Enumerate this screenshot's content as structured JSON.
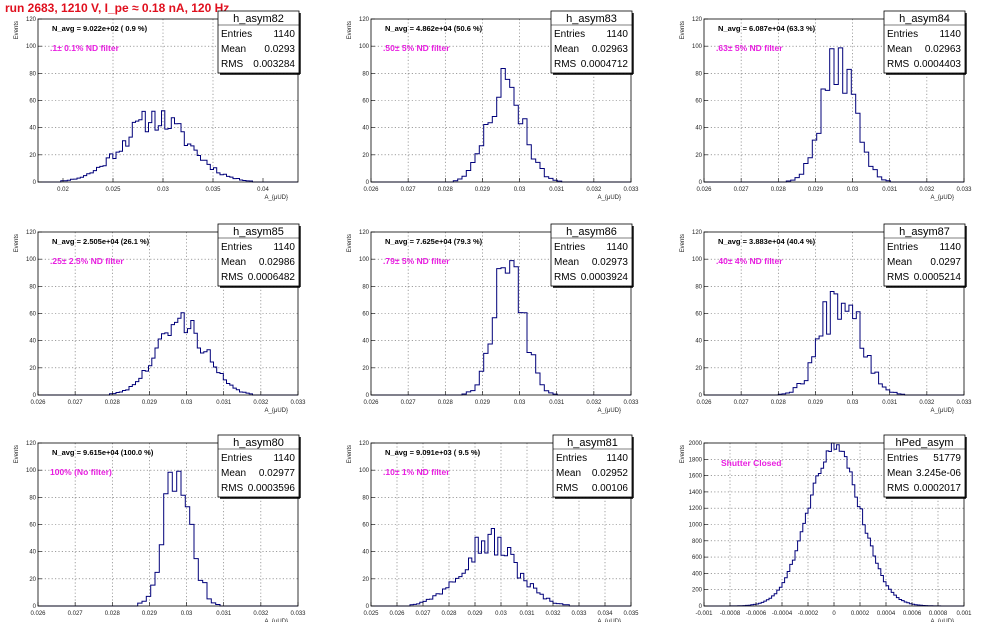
{
  "page_title": "run 2683,  1210 V, I_pe ≈ 0.18 nA, 120 Hz",
  "colors": {
    "title": "#e0101e",
    "annotation": "#e81ee0",
    "histogram": "#00007a",
    "grid": "#666666"
  },
  "chart_data": [
    {
      "type": "histogram",
      "name": "h_asym82",
      "entries": "1140",
      "mean": "0.0293",
      "rms": "0.003284",
      "n_avg": "N_avg = 9.022e+02 ( 0.9 %)",
      "filter": ".1± 0.1% ND filter",
      "ylabel": "Events",
      "xlabel": "A_{μUD}",
      "xlim": [
        0.0175,
        0.0435
      ],
      "ylim": [
        0,
        120
      ],
      "xticks": [
        0.02,
        0.025,
        0.03,
        0.035,
        0.04
      ],
      "xtick_labels": [
        "0.02",
        "0.025",
        "0.03",
        "0.035",
        "0.04"
      ],
      "yticks": [
        0,
        20,
        40,
        60,
        80,
        100,
        120
      ],
      "peak": 47,
      "dist": {
        "mean": 0.0293,
        "sigma": 0.0033,
        "w": 0.00022,
        "bins": 80,
        "seed": 11,
        "jit": 0.2
      }
    },
    {
      "type": "histogram",
      "name": "h_asym83",
      "entries": "1140",
      "mean": "0.02963",
      "rms": "0.0004712",
      "n_avg": "N_avg = 4.862e+04 (50.6 %)",
      "filter": ".50± 5% ND filter",
      "ylabel": "Events",
      "xlabel": "A_{μUD}",
      "xlim": [
        0.026,
        0.033
      ],
      "ylim": [
        0,
        120
      ],
      "xticks": [
        0.026,
        0.027,
        0.028,
        0.029,
        0.03,
        0.031,
        0.032,
        0.033
      ],
      "xtick_labels": [
        "0.026",
        "0.027",
        "0.028",
        "0.029",
        "0.03",
        "0.031",
        "0.032",
        "0.033"
      ],
      "yticks": [
        0,
        20,
        40,
        60,
        80,
        100,
        120
      ],
      "peak": 73,
      "dist": {
        "mean": 0.02963,
        "sigma": 0.00047,
        "w": 5e-05,
        "bins": 60,
        "seed": 23,
        "jit": 0.22
      }
    },
    {
      "type": "histogram",
      "name": "h_asym84",
      "entries": "1140",
      "mean": "0.02963",
      "rms": "0.0004403",
      "n_avg": "N_avg = 6.087e+04 (63.3 %)",
      "filter": ".63± 5% ND filter",
      "ylabel": "Events",
      "xlabel": "A_{μUD}",
      "xlim": [
        0.026,
        0.033
      ],
      "ylim": [
        0,
        120
      ],
      "xticks": [
        0.026,
        0.027,
        0.028,
        0.029,
        0.03,
        0.031,
        0.032,
        0.033
      ],
      "xtick_labels": [
        "0.026",
        "0.027",
        "0.028",
        "0.029",
        "0.03",
        "0.031",
        "0.032",
        "0.033"
      ],
      "yticks": [
        0,
        20,
        40,
        60,
        80,
        100,
        120
      ],
      "peak": 89,
      "dist": {
        "mean": 0.02963,
        "sigma": 0.00044,
        "w": 5e-05,
        "bins": 60,
        "seed": 37,
        "jit": 0.22
      }
    },
    {
      "type": "histogram",
      "name": "h_asym85",
      "entries": "1140",
      "mean": "0.02986",
      "rms": "0.0006482",
      "n_avg": "N_avg = 2.505e+04 (26.1 %)",
      "filter": ".25± 2.5% ND filter",
      "ylabel": "Events",
      "xlabel": "A_{μUD}",
      "xlim": [
        0.026,
        0.033
      ],
      "ylim": [
        0,
        120
      ],
      "xticks": [
        0.026,
        0.027,
        0.028,
        0.029,
        0.03,
        0.031,
        0.032,
        0.033
      ],
      "xtick_labels": [
        "0.026",
        "0.027",
        "0.028",
        "0.029",
        "0.03",
        "0.031",
        "0.032",
        "0.033"
      ],
      "yticks": [
        0,
        20,
        40,
        60,
        80,
        100,
        120
      ],
      "peak": 54,
      "dist": {
        "mean": 0.02986,
        "sigma": 0.00065,
        "w": 5e-05,
        "bins": 80,
        "seed": 41,
        "jit": 0.18
      }
    },
    {
      "type": "histogram",
      "name": "h_asym86",
      "entries": "1140",
      "mean": "0.02973",
      "rms": "0.0003924",
      "n_avg": "N_avg = 7.625e+04 (79.3 %)",
      "filter": ".79± 5% ND filter",
      "ylabel": "Events",
      "xlabel": "A_{μUD}",
      "xlim": [
        0.026,
        0.033
      ],
      "ylim": [
        0,
        120
      ],
      "xticks": [
        0.026,
        0.027,
        0.028,
        0.029,
        0.03,
        0.031,
        0.032,
        0.033
      ],
      "xtick_labels": [
        "0.026",
        "0.027",
        "0.028",
        "0.029",
        "0.03",
        "0.031",
        "0.032",
        "0.033"
      ],
      "yticks": [
        0,
        20,
        40,
        60,
        80,
        100,
        120
      ],
      "peak": 104,
      "dist": {
        "mean": 0.02973,
        "sigma": 0.00039,
        "w": 5e-05,
        "bins": 60,
        "seed": 53,
        "jit": 0.25
      }
    },
    {
      "type": "histogram",
      "name": "h_asym87",
      "entries": "1140",
      "mean": "0.0297",
      "rms": "0.0005214",
      "n_avg": "N_avg = 3.883e+04 (40.4 %)",
      "filter": ".40± 4% ND filter",
      "ylabel": "Events",
      "xlabel": "A_{μUD}",
      "xlim": [
        0.026,
        0.033
      ],
      "ylim": [
        0,
        120
      ],
      "xticks": [
        0.026,
        0.027,
        0.028,
        0.029,
        0.03,
        0.031,
        0.032,
        0.033
      ],
      "xtick_labels": [
        "0.026",
        "0.027",
        "0.028",
        "0.029",
        "0.03",
        "0.031",
        "0.032",
        "0.033"
      ],
      "yticks": [
        0,
        20,
        40,
        60,
        80,
        100,
        120
      ],
      "peak": 80,
      "dist": {
        "mean": 0.0297,
        "sigma": 0.00052,
        "w": 5e-05,
        "bins": 70,
        "seed": 67,
        "jit": 0.3
      }
    },
    {
      "type": "histogram",
      "name": "h_asym80",
      "entries": "1140",
      "mean": "0.02977",
      "rms": "0.0003596",
      "n_avg": "N_avg = 9.615e+04 (100.0 %)",
      "filter": "100% (No filter)",
      "ylabel": "Events",
      "xlabel": "A_{μUD}",
      "xlim": [
        0.026,
        0.033
      ],
      "ylim": [
        0,
        120
      ],
      "xticks": [
        0.026,
        0.027,
        0.028,
        0.029,
        0.03,
        0.031,
        0.032,
        0.033
      ],
      "xtick_labels": [
        "0.026",
        "0.027",
        "0.028",
        "0.029",
        "0.03",
        "0.031",
        "0.032",
        "0.033"
      ],
      "yticks": [
        0,
        20,
        40,
        60,
        80,
        100,
        120
      ],
      "peak": 101,
      "dist": {
        "mean": 0.02977,
        "sigma": 0.00036,
        "w": 5e-05,
        "bins": 60,
        "seed": 79,
        "jit": 0.3
      }
    },
    {
      "type": "histogram",
      "name": "h_asym81",
      "entries": "1140",
      "mean": "0.02952",
      "rms": "0.00106",
      "n_avg": "N_avg = 9.091e+03 ( 9.5 %)",
      "filter": ".10± 1% ND filter",
      "ylabel": "Events",
      "xlabel": "A_{μUD}",
      "xlim": [
        0.025,
        0.035
      ],
      "ylim": [
        0,
        120
      ],
      "xticks": [
        0.025,
        0.026,
        0.027,
        0.028,
        0.029,
        0.03,
        0.031,
        0.032,
        0.033,
        0.034,
        0.035
      ],
      "xtick_labels": [
        "0.025",
        "0.026",
        "0.027",
        "0.028",
        "0.029",
        "0.03",
        "0.031",
        "0.032",
        "0.033",
        "0.034",
        "0.035"
      ],
      "yticks": [
        0,
        20,
        40,
        60,
        80,
        100,
        120
      ],
      "peak": 48,
      "dist": {
        "mean": 0.02952,
        "sigma": 0.00106,
        "w": 8e-05,
        "bins": 80,
        "seed": 97,
        "jit": 0.25
      }
    },
    {
      "type": "histogram",
      "name": "hPed_asym",
      "entries": "51779",
      "mean": "3.245e-06",
      "rms": "0.0002017",
      "n_avg": "",
      "filter": "Shutter Closed",
      "ylabel": "Events",
      "xlabel": "A_{μUD}",
      "xlim": [
        -0.001,
        0.001
      ],
      "ylim": [
        0,
        2000
      ],
      "xticks": [
        -0.001,
        -0.0008,
        -0.0006,
        -0.0004,
        -0.0002,
        0,
        0.0002,
        0.0004,
        0.0006,
        0.0008,
        0.001
      ],
      "xtick_labels": [
        "-0.001",
        "-0.0008",
        "-0.0006",
        "-0.0004",
        "-0.0002",
        "0",
        "0.0002",
        "0.0004",
        "0.0006",
        "0.0008",
        "0.001"
      ],
      "yticks": [
        0,
        200,
        400,
        600,
        800,
        1000,
        1200,
        1400,
        1600,
        1800,
        2000
      ],
      "peak": 1950,
      "dist": {
        "mean": 3.2e-06,
        "sigma": 0.0002017,
        "w": 2e-05,
        "bins": 100,
        "seed": 131,
        "jit": 0.04
      }
    }
  ]
}
